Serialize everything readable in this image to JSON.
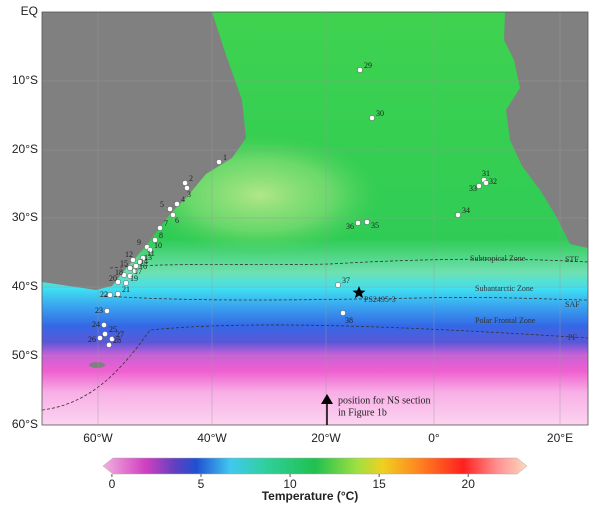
{
  "axes": {
    "y_labels": [
      "EQ",
      "10°S",
      "20°S",
      "30°S",
      "40°S",
      "50°S",
      "60°S"
    ],
    "x_labels": [
      "60°W",
      "40°W",
      "20°W",
      "0°",
      "20°E"
    ]
  },
  "stations": [
    "1",
    "2",
    "3",
    "4",
    "5",
    "6",
    "7",
    "8",
    "9",
    "10",
    "11",
    "12",
    "13",
    "14",
    "15",
    "16",
    "17",
    "18",
    "19",
    "20",
    "21",
    "22",
    "23",
    "24",
    "25",
    "26",
    "27",
    "28",
    "29",
    "30",
    "31",
    "32",
    "33",
    "34",
    "35",
    "36",
    "37",
    "38"
  ],
  "zones": [
    "Subtropical Zone",
    "Subantarctic Zone",
    "Polar Frontal Zone"
  ],
  "fronts": [
    "STF",
    "SAF",
    "PF"
  ],
  "core": "PS2495-3",
  "annotation": [
    "position for NS section",
    "in Figure 1b"
  ],
  "colorbar": {
    "label": "Temperature (°C)",
    "lim": [
      -0.5,
      23.3
    ],
    "ticks": [
      0,
      5,
      10,
      15,
      20
    ]
  }
}
